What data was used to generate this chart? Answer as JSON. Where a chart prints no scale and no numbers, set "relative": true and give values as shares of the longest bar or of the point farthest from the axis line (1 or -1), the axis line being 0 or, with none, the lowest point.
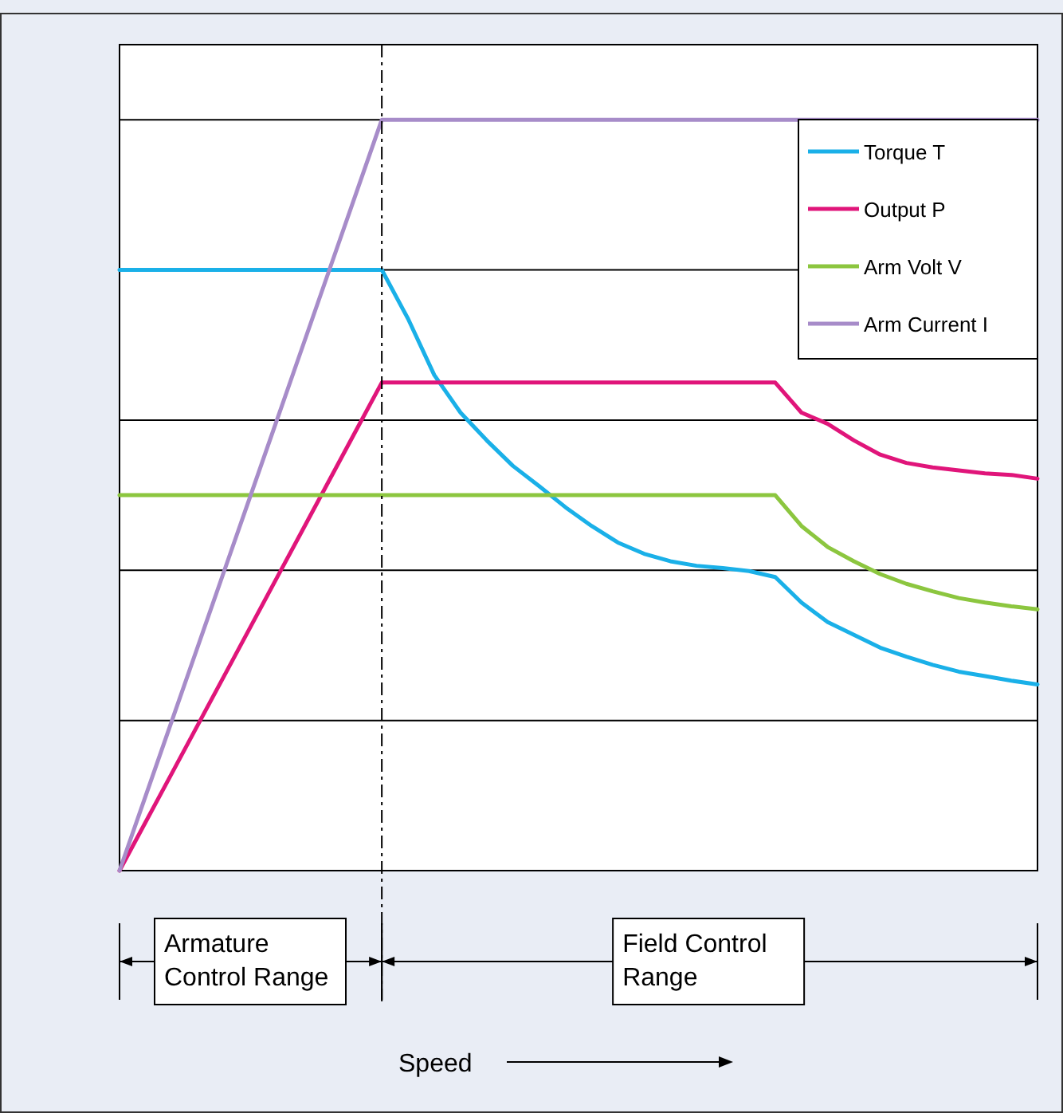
{
  "chart_data": {
    "type": "line",
    "relative": true,
    "categories": [
      null,
      null,
      null,
      null,
      null,
      null,
      null,
      null,
      null,
      null,
      null,
      null,
      null,
      null,
      null,
      null,
      null,
      null,
      null,
      null,
      null,
      null,
      null,
      null,
      null,
      null,
      null,
      null,
      null,
      null,
      null,
      null,
      null,
      null,
      null,
      null
    ],
    "series": [
      {
        "name": "Torque T",
        "color": "#1ab0e8",
        "values": [
          0.8,
          0.8,
          0.8,
          0.8,
          0.8,
          0.8,
          0.8,
          0.8,
          0.8,
          0.8,
          0.8,
          0.735,
          0.66,
          0.61,
          0.573,
          0.539,
          0.512,
          0.484,
          0.459,
          0.437,
          0.422,
          0.412,
          0.406,
          0.403,
          0.399,
          0.391,
          0.357,
          0.331,
          0.314,
          0.297,
          0.285,
          0.274,
          0.265,
          0.259,
          0.253,
          0.248
        ]
      },
      {
        "name": "Output P",
        "color": "#e0157a",
        "values": [
          0,
          0.065,
          0.13,
          0.195,
          0.26,
          0.325,
          0.39,
          0.455,
          0.52,
          0.585,
          0.65,
          0.65,
          0.65,
          0.65,
          0.65,
          0.65,
          0.65,
          0.65,
          0.65,
          0.65,
          0.65,
          0.65,
          0.65,
          0.65,
          0.65,
          0.65,
          0.61,
          0.595,
          0.573,
          0.554,
          0.543,
          0.537,
          0.533,
          0.529,
          0.527,
          0.522
        ]
      },
      {
        "name": "Arm Volt V",
        "color": "#8cc63f",
        "values": [
          0.5,
          0.5,
          0.5,
          0.5,
          0.5,
          0.5,
          0.5,
          0.5,
          0.5,
          0.5,
          0.5,
          0.5,
          0.5,
          0.5,
          0.5,
          0.5,
          0.5,
          0.5,
          0.5,
          0.5,
          0.5,
          0.5,
          0.5,
          0.5,
          0.5,
          0.5,
          0.459,
          0.431,
          0.412,
          0.395,
          0.382,
          0.372,
          0.363,
          0.357,
          0.352,
          0.348
        ]
      },
      {
        "name": "Arm Current I",
        "color": "#a78cc9",
        "values": [
          0,
          0.1,
          0.2,
          0.3,
          0.4,
          0.5,
          0.6,
          0.7,
          0.8,
          0.9,
          1,
          1,
          1,
          1,
          1,
          1,
          1,
          1,
          1,
          1,
          1,
          1,
          1,
          1,
          1,
          1,
          1,
          1,
          1,
          1,
          1,
          1,
          1,
          1,
          1,
          1
        ]
      }
    ],
    "annotations": [
      "Armature Control Range",
      "Field Control Range",
      "Speed"
    ],
    "grid": "y",
    "legend": "top right",
    "marker": "none",
    "line_style": "solid"
  }
}
